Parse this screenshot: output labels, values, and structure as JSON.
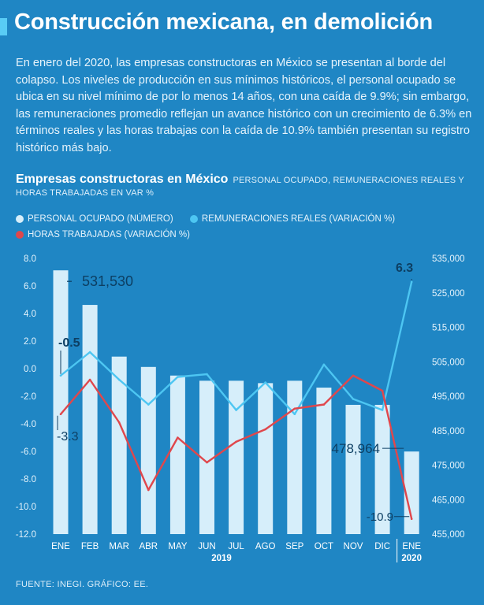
{
  "headline": "Construcción mexicana, en demolición",
  "intro": "En enero del 2020, las empresas constructoras en México se presentan al borde del colapso. Los niveles de producción en sus mínimos históricos, el personal ocupado se ubica en su nivel mínimo de por lo menos 14 años, con una caída de 9.9%; sin embargo, las remuneraciones promedio reflejan un avance histórico con un crecimiento de 6.3% en términos reales y las horas trabajas con la caída de 10.9% también presentan su registro histórico más bajo.",
  "chart_title": "Empresas constructoras en México",
  "chart_subtitle": "PERSONAL OCUPADO, REMUNERACIONES REALES Y HORAS TRABAJADAS EN VAR %",
  "source": "FUENTE: INEGI. GRÁFICO: EE.",
  "colors": {
    "background": "#1f86c4",
    "bars": "#d6eefa",
    "remuneraciones": "#4dc6f2",
    "horas": "#e0474c"
  },
  "chart_data": {
    "type": "bar+line",
    "categories": [
      "ENE",
      "FEB",
      "MAR",
      "ABR",
      "MAY",
      "JUN",
      "JUL",
      "AGO",
      "SEP",
      "OCT",
      "NOV",
      "DIC",
      "ENE"
    ],
    "year_labels": [
      "2019",
      "2020"
    ],
    "left_axis": {
      "ticks": [
        "8.0",
        "6.0",
        "4.0",
        "2.0",
        "0.0",
        "-2.0",
        "-4.0",
        "-6.0",
        "-8.0",
        "-10.0",
        "-12.0"
      ],
      "ylim": [
        -12,
        8
      ]
    },
    "right_axis": {
      "ticks": [
        "535,000",
        "525,000",
        "515,000",
        "505,000",
        "495,000",
        "485,000",
        "475,000",
        "465,000",
        "455,000"
      ],
      "ylim": [
        455000,
        535000
      ]
    },
    "series": [
      {
        "name": "PERSONAL OCUPADO (NÚMERO)",
        "type": "bar",
        "axis": "right",
        "values": [
          531530,
          521500,
          506500,
          503500,
          501000,
          499500,
          499500,
          498800,
          499500,
          497500,
          492500,
          492500,
          478964
        ]
      },
      {
        "name": "REMUNERACIONES REALES (VARIACIÓN %)",
        "type": "line",
        "axis": "left",
        "values": [
          -0.5,
          1.2,
          -0.8,
          -2.6,
          -0.6,
          -0.4,
          -3.0,
          -1.0,
          -3.3,
          0.3,
          -2.2,
          -3.0,
          6.3
        ]
      },
      {
        "name": "HORAS TRABAJADAS (VARIACIÓN %)",
        "type": "line",
        "axis": "left",
        "values": [
          -3.3,
          -0.8,
          -3.9,
          -8.8,
          -5.0,
          -6.8,
          -5.3,
          -4.4,
          -2.9,
          -2.6,
          -0.5,
          -1.6,
          -10.9
        ]
      }
    ],
    "annotations": [
      "531,530",
      "-0.5",
      "-3.3",
      "478,964",
      "6.3",
      "-10.9"
    ]
  }
}
